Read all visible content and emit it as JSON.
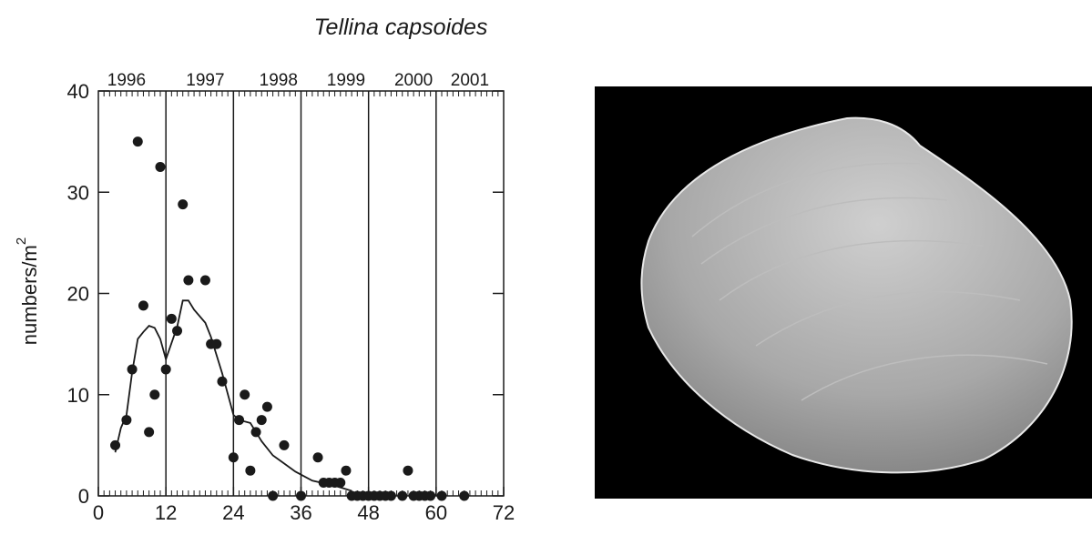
{
  "chart_data": {
    "type": "scatter",
    "title": "Tellina capsoides",
    "ylabel": "numbers/m",
    "ylabel_exponent": "2",
    "x": [
      3,
      5,
      6,
      7,
      8,
      9,
      10,
      11,
      12,
      13,
      14,
      15,
      16,
      19,
      20,
      21,
      22,
      24,
      25,
      26,
      27,
      28,
      29,
      30,
      31,
      33,
      36,
      39,
      40,
      41,
      42,
      43,
      44,
      45,
      46,
      47,
      48,
      49,
      50,
      51,
      52,
      54,
      55,
      56,
      57,
      58,
      59,
      61,
      65
    ],
    "values": [
      5,
      7.5,
      12.5,
      35,
      18.8,
      6.3,
      10,
      32.5,
      12.5,
      17.5,
      16.3,
      28.8,
      21.3,
      21.3,
      15,
      15,
      11.3,
      3.8,
      7.5,
      10,
      2.5,
      6.3,
      7.5,
      8.8,
      0,
      5,
      0,
      3.8,
      1.3,
      1.3,
      1.3,
      1.3,
      2.5,
      0,
      0,
      0,
      0,
      0,
      0,
      0,
      0,
      0,
      2.5,
      0,
      0,
      0,
      0,
      0,
      0
    ],
    "color": "#1a1a1a",
    "line": {
      "x": [
        3,
        4,
        5,
        6,
        7,
        8,
        9,
        10,
        11,
        12,
        14,
        15,
        16,
        17,
        19,
        20,
        22,
        24,
        25,
        27,
        29,
        31,
        33,
        35,
        38,
        42,
        45
      ],
      "values": [
        4.3,
        6.7,
        8,
        12.2,
        15.5,
        16.2,
        16.8,
        16.6,
        15.5,
        13.5,
        16.7,
        19.3,
        19.3,
        18.4,
        17.1,
        15.7,
        12.1,
        8,
        7.5,
        7.2,
        5.4,
        4,
        3.2,
        2.4,
        1.5,
        1,
        0.5
      ]
    },
    "xlim": [
      0,
      72
    ],
    "xticks": [
      0,
      12,
      24,
      36,
      48,
      60,
      72
    ],
    "ylim": [
      0,
      40
    ],
    "yticks": [
      0,
      10,
      20,
      30,
      40
    ],
    "x2ticks": [
      {
        "value": 5,
        "label": "1996"
      },
      {
        "value": 19,
        "label": "1997"
      },
      {
        "value": 32,
        "label": "1998"
      },
      {
        "value": 44,
        "label": "1999"
      },
      {
        "value": 56,
        "label": "2000"
      },
      {
        "value": 66,
        "label": "2001"
      }
    ],
    "vlines": [
      12,
      24,
      36,
      48,
      60
    ]
  }
}
